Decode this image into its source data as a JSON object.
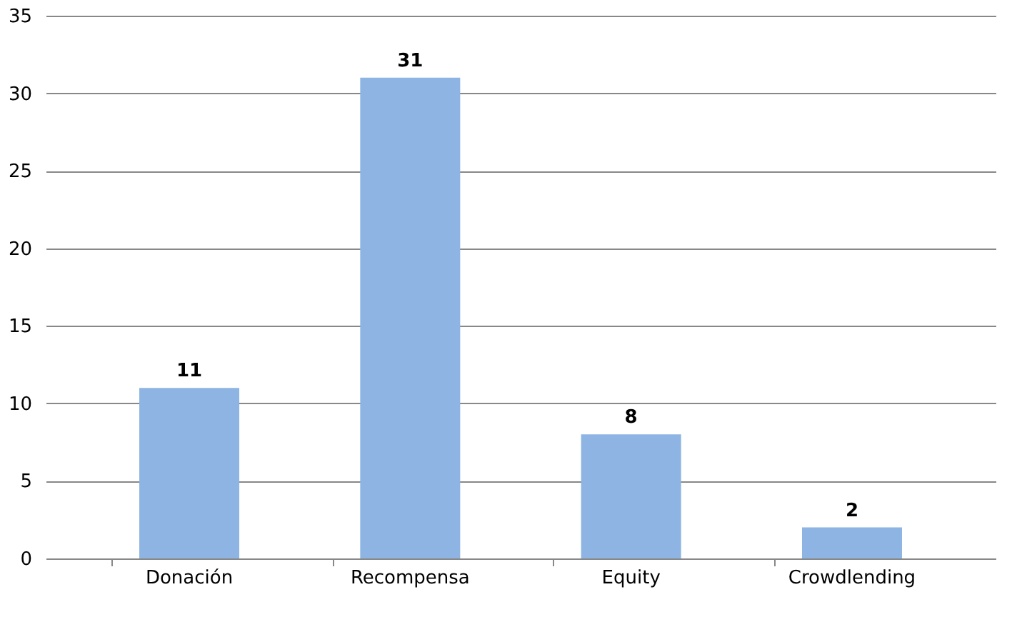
{
  "chart_data": {
    "type": "bar",
    "categories": [
      "Donación",
      "Recompensa",
      "Equity",
      "Crowdlending"
    ],
    "values": [
      11,
      31,
      8,
      2
    ],
    "color": "#8db4e2",
    "ylim": [
      0,
      35
    ],
    "yticks": [
      0,
      5,
      10,
      15,
      20,
      25,
      30,
      35
    ],
    "grid": "y",
    "data_labels": true
  }
}
